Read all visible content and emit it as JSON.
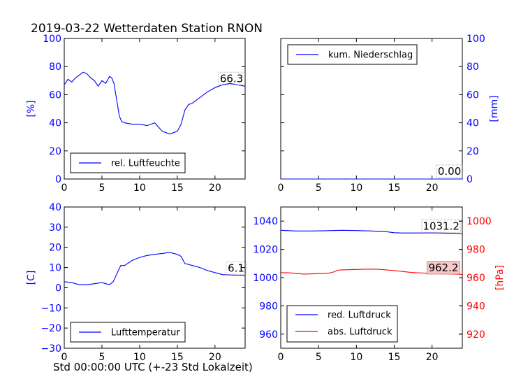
{
  "figure": {
    "title": "2019-03-22 Wetterdaten Station RNON",
    "xlabel": "Std 00:00:00 UTC (+-23 Std Lokalzeit)"
  },
  "colors": {
    "blue": "#0000ff",
    "red": "#ff0000",
    "text": "#000000",
    "pressure_box_fill": "#f8c8c8"
  },
  "chart_data": [
    {
      "id": "humidity",
      "type": "line",
      "ylabel": "[%]",
      "ylabel_side": "left",
      "xlim": [
        0,
        24
      ],
      "ylim": [
        0,
        100
      ],
      "xticks": [
        0,
        5,
        10,
        15,
        20
      ],
      "yticks": [
        0,
        20,
        40,
        60,
        80,
        100
      ],
      "legend_position": "lower-left",
      "grid": false,
      "series": [
        {
          "name": "rel. Luftfeuchte",
          "color": "#0000ff",
          "x": [
            0,
            0.5,
            1,
            1.5,
            2,
            2.5,
            3,
            3.5,
            4,
            4.5,
            5,
            5.5,
            6,
            6.3,
            6.6,
            7,
            7.3,
            7.6,
            8,
            9,
            10,
            11,
            12,
            12.5,
            13,
            13.5,
            14,
            14.5,
            15,
            15.5,
            16,
            16.5,
            17,
            18,
            19,
            20,
            21,
            22,
            23,
            24
          ],
          "y": [
            67,
            71,
            69,
            72,
            74,
            76,
            75,
            72,
            70,
            66,
            70,
            68,
            73,
            72,
            68,
            55,
            45,
            41,
            40,
            39,
            39,
            38,
            40,
            37,
            34,
            33,
            32,
            33,
            34,
            39,
            49,
            53,
            54,
            58,
            62,
            65,
            67,
            68,
            67,
            66
          ]
        }
      ],
      "annotations": [
        {
          "text": "66.3",
          "x": 22.2,
          "y": 69
        }
      ]
    },
    {
      "id": "precipitation",
      "type": "line",
      "ylabel": "[mm]",
      "ylabel_side": "right",
      "xlim": [
        0,
        24
      ],
      "ylim": [
        0,
        100
      ],
      "xticks": [
        0,
        5,
        10,
        15,
        20
      ],
      "yticks": [
        0,
        20,
        40,
        60,
        80,
        100
      ],
      "legend_position": "upper-left",
      "grid": false,
      "series": [
        {
          "name": "kum. Niederschlag",
          "color": "#0000ff",
          "x": [
            0,
            24
          ],
          "y": [
            0,
            0
          ]
        }
      ],
      "annotations": [
        {
          "text": "0.00",
          "x": 22.3,
          "y": 3
        }
      ]
    },
    {
      "id": "temperature",
      "type": "line",
      "ylabel": "[C]",
      "ylabel_side": "left",
      "xlim": [
        0,
        24
      ],
      "ylim": [
        -30,
        40
      ],
      "xticks": [
        0,
        5,
        10,
        15,
        20
      ],
      "yticks": [
        -30,
        -20,
        -10,
        0,
        10,
        20,
        30,
        40
      ],
      "legend_position": "lower-left",
      "grid": false,
      "series": [
        {
          "name": "Lufttemperatur",
          "color": "#0000ff",
          "x": [
            0,
            1,
            2,
            3,
            4,
            5,
            5.5,
            6,
            6.5,
            7,
            7.5,
            8,
            9,
            10,
            11,
            12,
            13,
            14,
            15,
            15.5,
            16,
            17,
            18,
            19,
            20,
            21,
            22,
            23,
            24
          ],
          "y": [
            3,
            2.5,
            1.5,
            1.5,
            2,
            2.5,
            2,
            1.5,
            3,
            7,
            11,
            11,
            13.5,
            15,
            16,
            16.5,
            17,
            17.5,
            16.5,
            15.5,
            12,
            11,
            10,
            8.5,
            7.5,
            6.5,
            6.3,
            6.2,
            6.1
          ]
        }
      ],
      "annotations": [
        {
          "text": "6.1",
          "x": 22.8,
          "y": 8
        }
      ]
    },
    {
      "id": "pressure",
      "type": "line",
      "ylabel": "[hPa]",
      "ylabel_side": "right",
      "xlim": [
        0,
        24
      ],
      "ylim_left": [
        950,
        1050
      ],
      "ylim_right": [
        910,
        1010
      ],
      "xticks": [
        0,
        5,
        10,
        15,
        20
      ],
      "yticks_left": [
        960,
        980,
        1000,
        1020,
        1040
      ],
      "yticks_right": [
        920,
        940,
        960,
        980,
        1000
      ],
      "legend_position": "lower-left",
      "grid": false,
      "series": [
        {
          "name": "red. Luftdruck",
          "color": "#0000ff",
          "axis": "left",
          "x": [
            0,
            2,
            4,
            6,
            8,
            10,
            12,
            14,
            15,
            16,
            18,
            20,
            22,
            24
          ],
          "y": [
            1033.5,
            1033,
            1033,
            1033.2,
            1033.5,
            1033.3,
            1033,
            1032.5,
            1031.8,
            1031.6,
            1031.6,
            1031.7,
            1031.5,
            1031.2
          ]
        },
        {
          "name": "abs. Luftdruck",
          "color": "#ff0000",
          "axis": "left",
          "x": [
            0,
            1,
            2,
            3,
            4,
            5,
            6,
            6.5,
            7,
            7.5,
            8,
            9,
            10,
            11,
            12,
            13,
            14,
            15,
            16,
            17,
            18,
            20,
            22,
            24
          ],
          "y": [
            1003.5,
            1003.4,
            1003,
            1002.5,
            1002.6,
            1002.8,
            1003,
            1003.3,
            1004,
            1005.2,
            1005.5,
            1005.6,
            1005.8,
            1006,
            1006,
            1005.9,
            1005.4,
            1005,
            1004.4,
            1003.8,
            1003.4,
            1002.9,
            1002.6,
            1002.3
          ]
        }
      ],
      "annotations": [
        {
          "text": "1031.2",
          "x": 21.2,
          "y": 1034,
          "box": "outline"
        },
        {
          "text": "962.2",
          "x": 21.5,
          "y": 1004.5,
          "box": "filled"
        }
      ]
    }
  ]
}
